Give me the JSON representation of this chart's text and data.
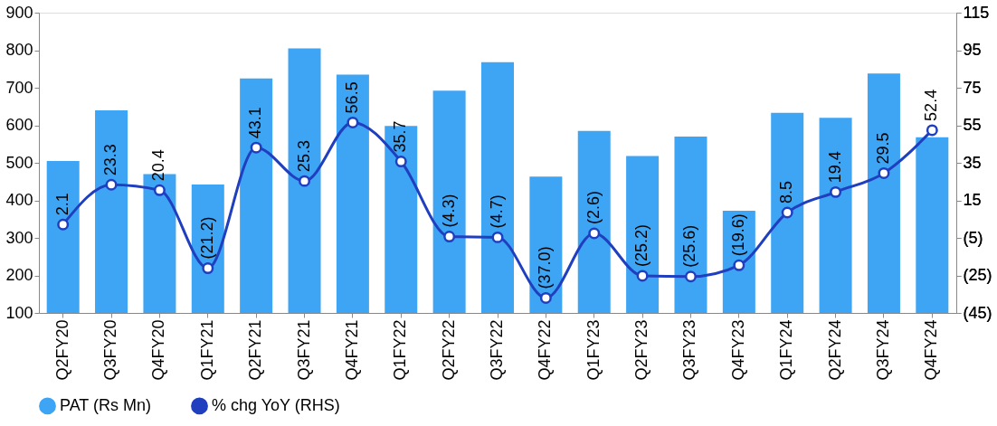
{
  "chart_data": {
    "type": "bar",
    "categories": [
      "Q2FY20",
      "Q3FY20",
      "Q4FY20",
      "Q1FY21",
      "Q2FY21",
      "Q3FY21",
      "Q4FY21",
      "Q1FY22",
      "Q2FY22",
      "Q3FY22",
      "Q4FY22",
      "Q1FY23",
      "Q2FY23",
      "Q3FY23",
      "Q4FY23",
      "Q1FY24",
      "Q2FY24",
      "Q3FY24",
      "Q4FY24"
    ],
    "series": [
      {
        "name": "PAT (Rs Mn)",
        "color": "#3ea4f4",
        "values": [
          505,
          640,
          470,
          442,
          725,
          805,
          735,
          598,
          692,
          768,
          463,
          585,
          518,
          570,
          372,
          633,
          620,
          738,
          568
        ]
      },
      {
        "name": "% chg YoY (RHS)",
        "type": "line",
        "axis": "y2",
        "color": "#1f3fbf",
        "marker": "circle",
        "values": [
          2.1,
          23.3,
          20.4,
          -21.2,
          43.1,
          25.3,
          56.5,
          35.7,
          -4.3,
          -4.7,
          -37.0,
          -2.6,
          -25.2,
          -25.6,
          -19.6,
          8.5,
          19.4,
          29.5,
          52.4
        ],
        "value_labels": [
          "2.1",
          "23.3",
          "20.4",
          "(21.2)",
          "43.1",
          "25.3",
          "56.5",
          "35.7",
          "(4.3)",
          "(4.7)",
          "(37.0)",
          "(2.6)",
          "(25.2)",
          "(25.6)",
          "(19.6)",
          "8.5",
          "19.4",
          "29.5",
          "52.4"
        ]
      }
    ],
    "ylim": [
      100,
      900
    ],
    "yticks": [
      100,
      200,
      300,
      400,
      500,
      600,
      700,
      800,
      900
    ],
    "y2lim": [
      -45,
      115
    ],
    "y2ticks": [
      {
        "value": -45,
        "label": "(45)"
      },
      {
        "value": -25,
        "label": "(25)"
      },
      {
        "value": -5,
        "label": "(5)"
      },
      15,
      35,
      55,
      75,
      95,
      115
    ],
    "grid": false,
    "legend": "bottom"
  }
}
